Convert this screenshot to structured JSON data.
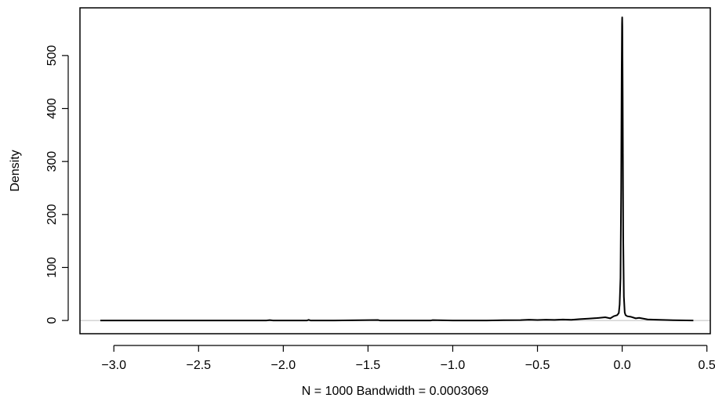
{
  "chart_data": {
    "type": "line",
    "title": "",
    "xlabel": "N = 1000   Bandwidth = 0.0003069",
    "ylabel": "Density",
    "xlim": [
      -3.2,
      0.52
    ],
    "ylim": [
      -25,
      590
    ],
    "x_ticks": [
      -3.0,
      -2.5,
      -2.0,
      -1.5,
      -1.0,
      -0.5,
      0.0,
      0.5
    ],
    "x_tick_labels": [
      "−3.0",
      "−2.5",
      "−2.0",
      "−1.5",
      "−1.0",
      "−0.5",
      "0.0",
      "0.5"
    ],
    "y_ticks": [
      0,
      100,
      200,
      300,
      400,
      500
    ],
    "y_tick_labels": [
      "0",
      "100",
      "200",
      "300",
      "400",
      "500"
    ],
    "zero_line": true,
    "grid": false,
    "series": [
      {
        "x": [
          -3.08,
          -2.5,
          -2.1,
          -2.08,
          -2.06,
          -1.86,
          -1.85,
          -1.84,
          -1.7,
          -1.44,
          -1.43,
          -1.2,
          -1.13,
          -1.12,
          -1.0,
          -0.9,
          -0.8,
          -0.7,
          -0.6,
          -0.55,
          -0.5,
          -0.45,
          -0.4,
          -0.35,
          -0.3,
          -0.25,
          -0.2,
          -0.15,
          -0.1,
          -0.07,
          -0.05,
          -0.03,
          -0.02,
          -0.015,
          -0.01,
          -0.006,
          -0.003,
          -0.001,
          0.0,
          0.001,
          0.003,
          0.006,
          0.01,
          0.015,
          0.02,
          0.03,
          0.05,
          0.08,
          0.1,
          0.15,
          0.2,
          0.3,
          0.42
        ],
        "y": [
          0,
          0,
          0,
          0.7,
          0,
          0,
          1.2,
          0,
          0,
          0.8,
          0,
          0,
          0,
          0.6,
          0,
          0,
          0,
          0.5,
          0.6,
          1.5,
          0.8,
          1.5,
          1.0,
          1.8,
          1.2,
          2.5,
          3.5,
          4.5,
          6,
          4,
          8,
          10,
          14,
          30,
          80,
          250,
          470,
          560,
          572,
          555,
          420,
          160,
          45,
          15,
          10,
          8,
          7,
          4,
          5,
          2,
          1.5,
          0.5,
          0
        ]
      }
    ]
  }
}
